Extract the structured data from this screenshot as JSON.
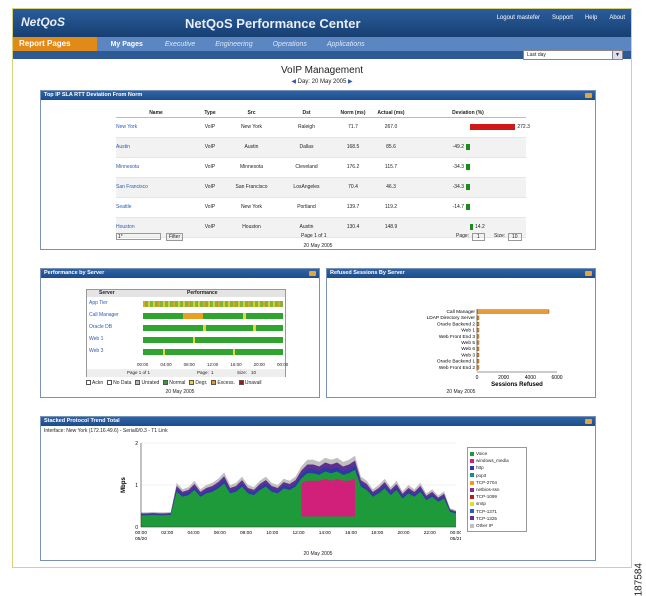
{
  "app": {
    "logo": "NetQoS",
    "title": "NetQoS Performance Center",
    "links": [
      "Logout mastefer",
      "Support",
      "Help",
      "About"
    ]
  },
  "nav": {
    "report_pages": "Report Pages",
    "my_pages": "My Pages",
    "tabs": [
      "Executive",
      "Engineering",
      "Operations",
      "Applications"
    ],
    "range_select": "Last day"
  },
  "page": {
    "title": "VoIP Management",
    "date": "Day: 20 May 2005"
  },
  "deviation": {
    "title": "Top IP SLA RTT Deviation From Norm",
    "columns": [
      "Name",
      "Type",
      "Src",
      "Dst",
      "Norm (ms)",
      "Actual (ms)",
      "Deviation (%)"
    ],
    "rows": [
      {
        "name": "New York",
        "type": "VoIP",
        "src": "New York",
        "dst": "Raleigh",
        "norm": "71.7",
        "actual": "267.0",
        "dev": 272.3,
        "dev_label": "272.3"
      },
      {
        "name": "Austin",
        "type": "VoIP",
        "src": "Austin",
        "dst": "Dallas",
        "norm": "168.5",
        "actual": "85.6",
        "dev": -49.2,
        "dev_label": "-49.2"
      },
      {
        "name": "Minnesota",
        "type": "VoIP",
        "src": "Minnesota",
        "dst": "Cleveland",
        "norm": "176.2",
        "actual": "115.7",
        "dev": -34.3,
        "dev_label": "-34.3"
      },
      {
        "name": "San Francisco",
        "type": "VoIP",
        "src": "San Francisco",
        "dst": "LosAngeles",
        "norm": "70.4",
        "actual": "46.3",
        "dev": -34.3,
        "dev_label": "-34.3"
      },
      {
        "name": "Seattle",
        "type": "VoIP",
        "src": "New York",
        "dst": "Portland",
        "norm": "139.7",
        "actual": "119.2",
        "dev": -14.7,
        "dev_label": "-14.7"
      },
      {
        "name": "Houston",
        "type": "VoIP",
        "src": "Houston",
        "dst": "Austin",
        "norm": "130.4",
        "actual": "148.9",
        "dev": 14.2,
        "dev_label": "14.2"
      }
    ],
    "filter_value": "1*",
    "filter_button": "Filter",
    "pager": "Page 1 of 1",
    "page_label": "Page:",
    "page_value": "1",
    "size_label": "Size:",
    "size_value": "10",
    "date": "20 May 2005"
  },
  "performance": {
    "title": "Performance by Server",
    "columns": [
      "Server",
      "Performance"
    ],
    "servers": [
      "App Tier",
      "Call Manager",
      "Oracle DB",
      "Web 1",
      "Web 3"
    ],
    "time_labels": [
      "00:00",
      "04:00",
      "08:00",
      "12:00",
      "16:00",
      "20:00",
      "00:00"
    ],
    "pager": "Page 1 of 1",
    "page_label": "Page:",
    "page_value": "1",
    "size_label": "Size:",
    "size_value": "10",
    "legend": [
      {
        "label": "Ackn",
        "color": "#ffffff"
      },
      {
        "label": "No Data",
        "color": "#ffffff"
      },
      {
        "label": "Unrated",
        "color": "#bbbbbb"
      },
      {
        "label": "Normal",
        "color": "#2fa42f"
      },
      {
        "label": "Degr.",
        "color": "#e8d830"
      },
      {
        "label": "Excess.",
        "color": "#e89a20"
      },
      {
        "label": "Unavail",
        "color": "#b01010"
      }
    ],
    "date": "20 May 2005"
  },
  "refused": {
    "title": "Refused Sessions By Server",
    "date": "20 May 2005",
    "chart_data": {
      "type": "bar",
      "categories": [
        "Call Manager",
        "LDAP Directory Server",
        "Oracle Backend 2",
        "Web 1",
        "Web Front End 3",
        "Web 5",
        "Web 6",
        "Web 3",
        "Oracle Backend 1",
        "Web Front End 2"
      ],
      "values": [
        5400,
        120,
        90,
        70,
        60,
        50,
        40,
        40,
        30,
        30
      ],
      "xlabel": "Sessions Refused",
      "ylabel": "",
      "xlim": [
        0,
        6000
      ],
      "xticks": [
        "0",
        "2000",
        "4000",
        "6000"
      ]
    }
  },
  "protocol": {
    "title": "Stacked Protocol Trend Total",
    "interface": "Interface: New York (172.16.49.6) - Serial0/0.3 - T1 Link",
    "date": "20 May 2005",
    "chart_data": {
      "type": "area",
      "ylabel": "Mbps",
      "ylim": [
        0,
        2
      ],
      "yticks": [
        "0",
        "1",
        "2"
      ],
      "x": [
        "00:00\n05/20",
        "02:00",
        "04:00",
        "06:00",
        "08:00",
        "10:00",
        "12:00",
        "14:00",
        "16:00",
        "18:00",
        "20:00",
        "22:00",
        "00:00\n05/21"
      ],
      "series": [
        {
          "name": "Voice",
          "color": "#1f9a3a"
        },
        {
          "name": "windows_media",
          "color": "#d0207a"
        },
        {
          "name": "http",
          "color": "#2a3aa8"
        },
        {
          "name": "pop3",
          "color": "#1a8a8a"
        },
        {
          "name": "TCP-2704",
          "color": "#e8a020"
        },
        {
          "name": "netbios-ssn",
          "color": "#8a2a8a"
        },
        {
          "name": "TCP-1099",
          "color": "#b02020"
        },
        {
          "name": "smtp",
          "color": "#e0e020"
        },
        {
          "name": "TCP-1371",
          "color": "#2060c0"
        },
        {
          "name": "TCP-1325",
          "color": "#603090"
        },
        {
          "name": "Other IP",
          "color": "#c0c0c0"
        }
      ],
      "total": [
        0.35,
        0.35,
        0.36,
        0.35,
        0.35,
        0.36,
        1.05,
        0.9,
        0.95,
        1.1,
        0.9,
        1.0,
        1.05,
        1.15,
        1.3,
        1.0,
        1.05,
        1.2,
        1.0,
        0.95,
        1.1,
        1.2,
        1.05,
        1.0,
        1.15,
        1.1,
        1.2,
        1.45,
        1.6,
        1.6,
        1.55,
        1.65,
        1.6,
        1.65,
        1.55,
        1.6,
        1.7,
        1.2,
        1.1,
        0.9,
        1.0,
        1.15,
        0.95,
        1.1,
        0.85,
        1.0,
        0.9,
        1.05,
        0.8,
        0.9,
        0.75,
        0.85,
        0.45,
        0.4
      ],
      "media": [
        0,
        0,
        0,
        0,
        0,
        0,
        0,
        0,
        0,
        0,
        0,
        0,
        0,
        0,
        0,
        0,
        0,
        0,
        0,
        0,
        0,
        0,
        0,
        0,
        0,
        0,
        0,
        1.05,
        1.1,
        1.1,
        1.1,
        1.15,
        1.1,
        1.15,
        1.1,
        1.1,
        1.15,
        0,
        0,
        0,
        0,
        0,
        0,
        0,
        0,
        0,
        0,
        0,
        0,
        0,
        0,
        0,
        0,
        0
      ]
    }
  },
  "figure_number": "187584"
}
